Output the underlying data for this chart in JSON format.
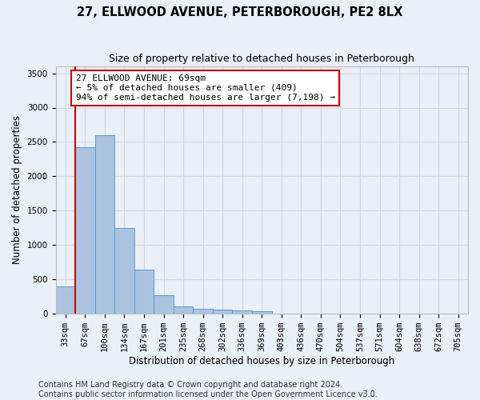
{
  "title": "27, ELLWOOD AVENUE, PETERBOROUGH, PE2 8LX",
  "subtitle": "Size of property relative to detached houses in Peterborough",
  "xlabel": "Distribution of detached houses by size in Peterborough",
  "ylabel": "Number of detached properties",
  "categories": [
    "33sqm",
    "67sqm",
    "100sqm",
    "134sqm",
    "167sqm",
    "201sqm",
    "235sqm",
    "268sqm",
    "302sqm",
    "336sqm",
    "369sqm",
    "403sqm",
    "436sqm",
    "470sqm",
    "504sqm",
    "537sqm",
    "571sqm",
    "604sqm",
    "638sqm",
    "672sqm",
    "705sqm"
  ],
  "values": [
    390,
    2420,
    2600,
    1240,
    640,
    260,
    100,
    65,
    60,
    45,
    30,
    0,
    0,
    0,
    0,
    0,
    0,
    0,
    0,
    0,
    0
  ],
  "bar_color": "#aac4e0",
  "bar_edge_color": "#5b9bd5",
  "vline_color": "#cc0000",
  "annotation_text": "27 ELLWOOD AVENUE: 69sqm\n← 5% of detached houses are smaller (409)\n94% of semi-detached houses are larger (7,198) →",
  "annotation_box_color": "#ffffff",
  "annotation_box_edge": "#cc0000",
  "ylim": [
    0,
    3600
  ],
  "yticks": [
    0,
    500,
    1000,
    1500,
    2000,
    2500,
    3000,
    3500
  ],
  "grid_color": "#d0d8e8",
  "background_color": "#eaf0f8",
  "footer_line1": "Contains HM Land Registry data © Crown copyright and database right 2024.",
  "footer_line2": "Contains public sector information licensed under the Open Government Licence v3.0.",
  "title_fontsize": 10.5,
  "subtitle_fontsize": 9,
  "axis_label_fontsize": 8.5,
  "tick_fontsize": 7.5,
  "annotation_fontsize": 8,
  "footer_fontsize": 7
}
